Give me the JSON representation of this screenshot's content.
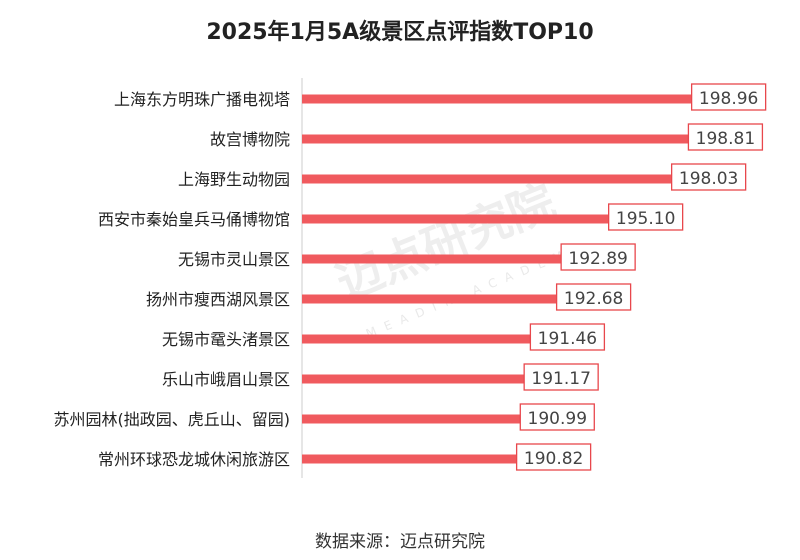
{
  "chart_data": {
    "type": "bar",
    "orientation": "horizontal",
    "title": "2025年1月5A级景区点评指数TOP10",
    "xlabel": "",
    "ylabel": "",
    "xlim": [
      180,
      200
    ],
    "grid": false,
    "categories": [
      "上海东方明珠广播电视塔",
      "故宫博物院",
      "上海野生动物园",
      "西安市秦始皇兵马俑博物馆",
      "无锡市灵山景区",
      "扬州市瘦西湖风景区",
      "无锡市鼋头渚景区",
      "乐山市峨眉山景区",
      "苏州园林(拙政园、虎丘山、留园)",
      "常州环球恐龙城休闲旅游区"
    ],
    "values": [
      198.96,
      198.81,
      198.03,
      195.1,
      192.89,
      192.68,
      191.46,
      191.17,
      190.99,
      190.82
    ],
    "value_labels": [
      "198.96",
      "198.81",
      "198.03",
      "195.10",
      "192.89",
      "192.68",
      "191.46",
      "191.17",
      "190.99",
      "190.82"
    ],
    "bar_color": "#f05a5e",
    "label_border_color": "#e8474c"
  },
  "watermark": {
    "text": "迈点研究院",
    "sub": "MEADIN ACADEMY"
  },
  "source": "数据来源：迈点研究院"
}
